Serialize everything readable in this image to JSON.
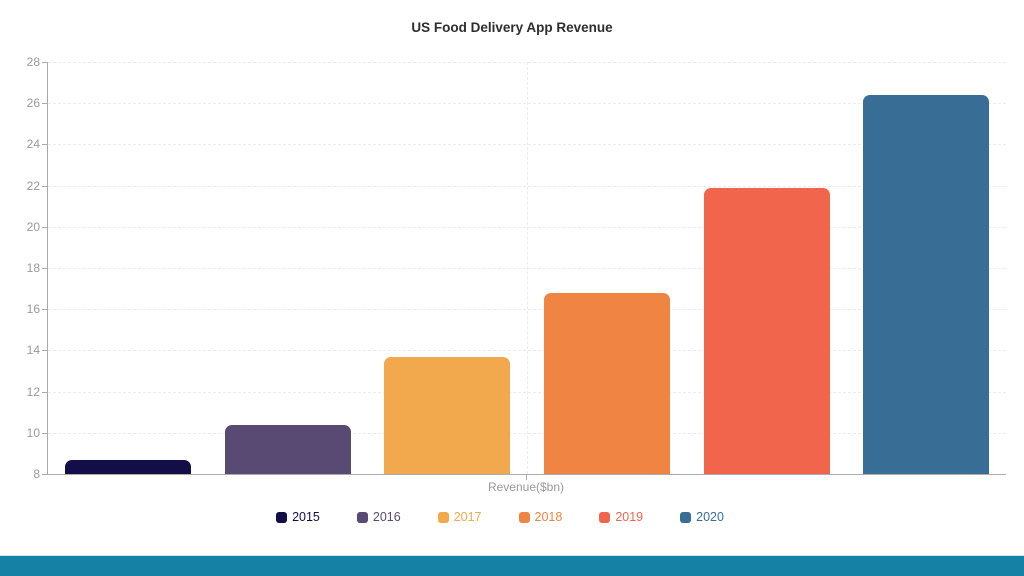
{
  "page": {
    "background_color": "#ffffff",
    "footer_band_color": "#1581a5",
    "footer_band_edge_color": "#cfe6e6"
  },
  "chart_data": {
    "type": "bar",
    "title": "US Food Delivery App Revenue",
    "categories": [
      "2015",
      "2016",
      "2017",
      "2018",
      "2019",
      "2020"
    ],
    "values": [
      8.7,
      10.4,
      13.7,
      16.8,
      21.9,
      26.4
    ],
    "series_colors": [
      "#140e48",
      "#594a73",
      "#f2a94e",
      "#f08442",
      "#f0654c",
      "#386e96"
    ],
    "xlabel": "Revenue($bn)",
    "ylabel": "",
    "ylim": [
      8,
      28
    ],
    "yticks": [
      8,
      10,
      12,
      14,
      16,
      18,
      20,
      22,
      24,
      26,
      28
    ],
    "grid": "dashed horizontal lines at each y tick, dashed vertical line at plot center",
    "legend_position": "bottom",
    "axis_color": "#ababab",
    "tick_label_color": "#999999",
    "grid_color": "#ececec",
    "title_color": "#2e2e2e"
  }
}
